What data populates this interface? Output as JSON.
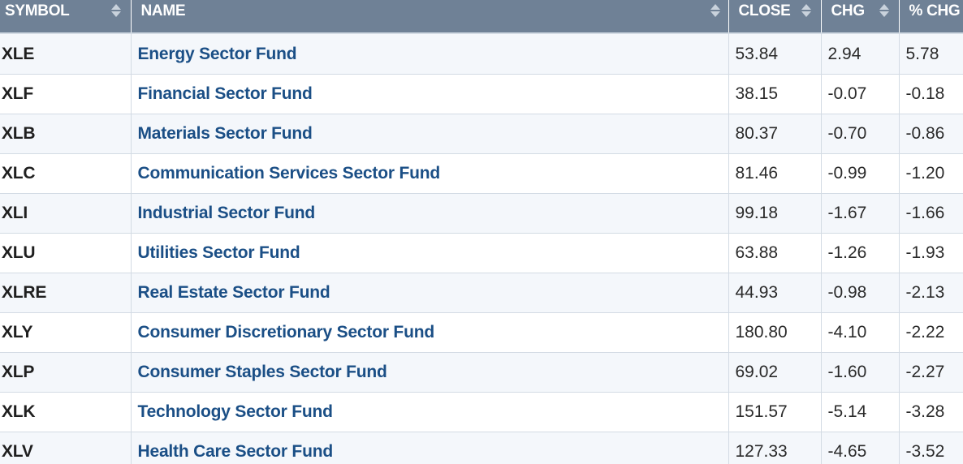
{
  "table": {
    "columns": [
      {
        "key": "symbol",
        "label": "SYMBOL"
      },
      {
        "key": "name",
        "label": "NAME"
      },
      {
        "key": "close",
        "label": "CLOSE"
      },
      {
        "key": "chg",
        "label": "CHG"
      },
      {
        "key": "pct",
        "label": "% CHG"
      }
    ],
    "rows": [
      {
        "symbol": "XLE",
        "name": "Energy Sector Fund",
        "close": "53.84",
        "chg": "2.94",
        "pct": "5.78"
      },
      {
        "symbol": "XLF",
        "name": "Financial Sector Fund",
        "close": "38.15",
        "chg": "-0.07",
        "pct": "-0.18"
      },
      {
        "symbol": "XLB",
        "name": "Materials Sector Fund",
        "close": "80.37",
        "chg": "-0.70",
        "pct": "-0.86"
      },
      {
        "symbol": "XLC",
        "name": "Communication Services Sector Fund",
        "close": "81.46",
        "chg": "-0.99",
        "pct": "-1.20"
      },
      {
        "symbol": "XLI",
        "name": "Industrial Sector Fund",
        "close": "99.18",
        "chg": "-1.67",
        "pct": "-1.66"
      },
      {
        "symbol": "XLU",
        "name": "Utilities Sector Fund",
        "close": "63.88",
        "chg": "-1.26",
        "pct": "-1.93"
      },
      {
        "symbol": "XLRE",
        "name": "Real Estate Sector Fund",
        "close": "44.93",
        "chg": "-0.98",
        "pct": "-2.13"
      },
      {
        "symbol": "XLY",
        "name": "Consumer Discretionary Sector Fund",
        "close": "180.80",
        "chg": "-4.10",
        "pct": "-2.22"
      },
      {
        "symbol": "XLP",
        "name": "Consumer Staples Sector Fund",
        "close": "69.02",
        "chg": "-1.60",
        "pct": "-2.27"
      },
      {
        "symbol": "XLK",
        "name": "Technology Sector Fund",
        "close": "151.57",
        "chg": "-5.14",
        "pct": "-3.28"
      },
      {
        "symbol": "XLV",
        "name": "Health Care Sector Fund",
        "close": "127.33",
        "chg": "-4.65",
        "pct": "-3.52"
      }
    ]
  },
  "icons": {
    "sort": "sort-arrows-icon"
  },
  "colors": {
    "header_bg": "#6f8196",
    "link": "#1b4f86",
    "row_alt": "#f4f7fb",
    "border": "#d3dbe4"
  }
}
